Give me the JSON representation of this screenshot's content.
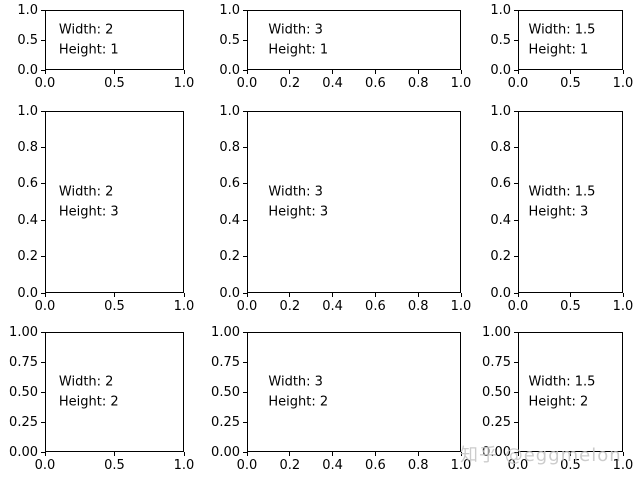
{
  "figure": {
    "background": "#ffffff",
    "axes_edge_color": "#000000",
    "text_color": "#000000"
  },
  "watermark": {
    "text": "知乎 @eggmelon",
    "color": "#c4c4c4"
  },
  "chart_data": {
    "type": "subplot-grid",
    "title": "",
    "grid": {
      "nrows": 3,
      "ncols": 3,
      "width_ratios": [
        2,
        3,
        1.5
      ],
      "height_ratios": [
        1,
        3,
        2
      ]
    },
    "subplots": [
      {
        "row": 0,
        "col": 0,
        "width": 2,
        "height": 1,
        "annotation": [
          "Width: 2",
          "Height: 1"
        ],
        "xlim": [
          0,
          1
        ],
        "ylim": [
          0,
          1
        ],
        "xticks": [
          "0.0",
          "0.5",
          "1.0"
        ],
        "yticks": [
          "0.0",
          "0.5",
          "1.0"
        ]
      },
      {
        "row": 0,
        "col": 1,
        "width": 3,
        "height": 1,
        "annotation": [
          "Width: 3",
          "Height: 1"
        ],
        "xlim": [
          0,
          1
        ],
        "ylim": [
          0,
          1
        ],
        "xticks": [
          "0.0",
          "0.2",
          "0.4",
          "0.6",
          "0.8",
          "1.0"
        ],
        "yticks": [
          "0.0",
          "0.5",
          "1.0"
        ]
      },
      {
        "row": 0,
        "col": 2,
        "width": 1.5,
        "height": 1,
        "annotation": [
          "Width: 1.5",
          "Height: 1"
        ],
        "xlim": [
          0,
          1
        ],
        "ylim": [
          0,
          1
        ],
        "xticks": [
          "0.0",
          "0.5",
          "1.0"
        ],
        "yticks": [
          "0.0",
          "0.5",
          "1.0"
        ]
      },
      {
        "row": 1,
        "col": 0,
        "width": 2,
        "height": 3,
        "annotation": [
          "Width: 2",
          "Height: 3"
        ],
        "xlim": [
          0,
          1
        ],
        "ylim": [
          0,
          1
        ],
        "xticks": [
          "0.0",
          "0.5",
          "1.0"
        ],
        "yticks": [
          "0.0",
          "0.2",
          "0.4",
          "0.6",
          "0.8",
          "1.0"
        ]
      },
      {
        "row": 1,
        "col": 1,
        "width": 3,
        "height": 3,
        "annotation": [
          "Width: 3",
          "Height: 3"
        ],
        "xlim": [
          0,
          1
        ],
        "ylim": [
          0,
          1
        ],
        "xticks": [
          "0.0",
          "0.2",
          "0.4",
          "0.6",
          "0.8",
          "1.0"
        ],
        "yticks": [
          "0.0",
          "0.2",
          "0.4",
          "0.6",
          "0.8",
          "1.0"
        ]
      },
      {
        "row": 1,
        "col": 2,
        "width": 1.5,
        "height": 3,
        "annotation": [
          "Width: 1.5",
          "Height: 3"
        ],
        "xlim": [
          0,
          1
        ],
        "ylim": [
          0,
          1
        ],
        "xticks": [
          "0.0",
          "0.5",
          "1.0"
        ],
        "yticks": [
          "0.0",
          "0.2",
          "0.4",
          "0.6",
          "0.8",
          "1.0"
        ]
      },
      {
        "row": 2,
        "col": 0,
        "width": 2,
        "height": 2,
        "annotation": [
          "Width: 2",
          "Height: 2"
        ],
        "xlim": [
          0,
          1
        ],
        "ylim": [
          0,
          1
        ],
        "xticks": [
          "0.0",
          "0.5",
          "1.0"
        ],
        "yticks": [
          "0.00",
          "0.25",
          "0.50",
          "0.75",
          "1.00"
        ]
      },
      {
        "row": 2,
        "col": 1,
        "width": 3,
        "height": 2,
        "annotation": [
          "Width: 3",
          "Height: 2"
        ],
        "xlim": [
          0,
          1
        ],
        "ylim": [
          0,
          1
        ],
        "xticks": [
          "0.0",
          "0.2",
          "0.4",
          "0.6",
          "0.8",
          "1.0"
        ],
        "yticks": [
          "0.00",
          "0.25",
          "0.50",
          "0.75",
          "1.00"
        ]
      },
      {
        "row": 2,
        "col": 2,
        "width": 1.5,
        "height": 2,
        "annotation": [
          "Width: 1.5",
          "Height: 2"
        ],
        "xlim": [
          0,
          1
        ],
        "ylim": [
          0,
          1
        ],
        "xticks": [
          "0.0",
          "0.5",
          "1.0"
        ],
        "yticks": [
          "0.00",
          "0.25",
          "0.50",
          "0.75",
          "1.00"
        ]
      }
    ]
  }
}
